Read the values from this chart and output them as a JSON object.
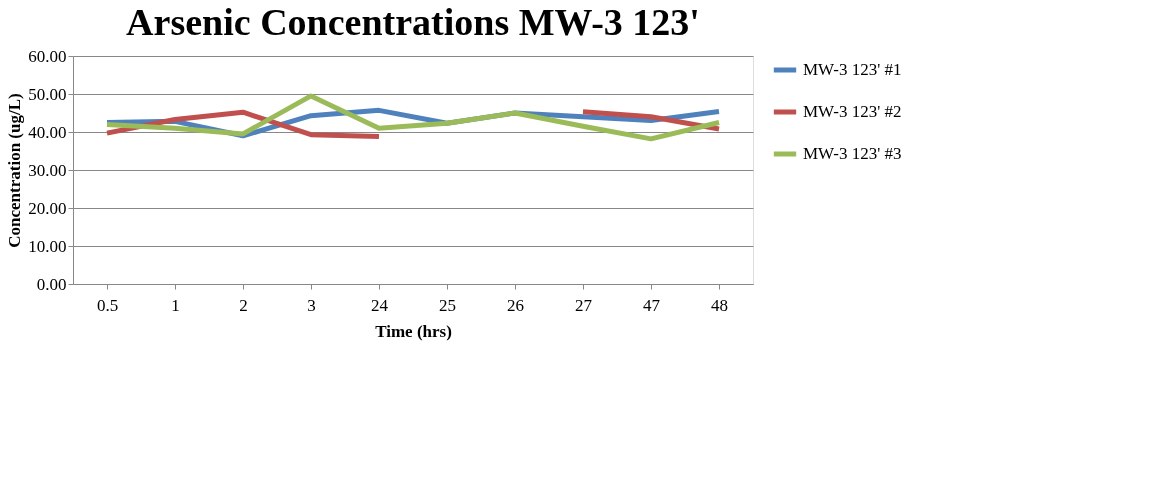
{
  "chart_data": {
    "type": "line",
    "title": "Arsenic Concentrations MW-3 123'",
    "xlabel": "Time (hrs)",
    "ylabel": "Concentration (ug/L)",
    "categories": [
      "0.5",
      "1",
      "2",
      "3",
      "24",
      "25",
      "26",
      "27",
      "47",
      "48"
    ],
    "series": [
      {
        "name": "MW-3 123' #1",
        "color": "#4f81bd",
        "values": [
          42.5,
          42.8,
          39.0,
          44.3,
          45.7,
          42.3,
          45.0,
          44.0,
          43.0,
          45.4
        ]
      },
      {
        "name": "MW-3 123' #2",
        "color": "#c0504d",
        "values": [
          39.7,
          43.3,
          45.2,
          39.3,
          38.8,
          null,
          null,
          45.3,
          44.0,
          40.8
        ]
      },
      {
        "name": "MW-3 123' #3",
        "color": "#9bbb59",
        "values": [
          42.0,
          41.0,
          39.5,
          49.5,
          41.0,
          42.3,
          45.0,
          41.5,
          38.2,
          42.5
        ]
      }
    ],
    "ylim": [
      0,
      60
    ],
    "yticks": [
      {
        "value": 0,
        "label": "0.00"
      },
      {
        "value": 10,
        "label": "10.00"
      },
      {
        "value": 20,
        "label": "20.00"
      },
      {
        "value": 30,
        "label": "30.00"
      },
      {
        "value": 40,
        "label": "40.00"
      },
      {
        "value": 50,
        "label": "50.00"
      },
      {
        "value": 60,
        "label": "60.00"
      }
    ],
    "grid": "y",
    "legend": "right",
    "marker": "none",
    "line_style": "solid"
  }
}
